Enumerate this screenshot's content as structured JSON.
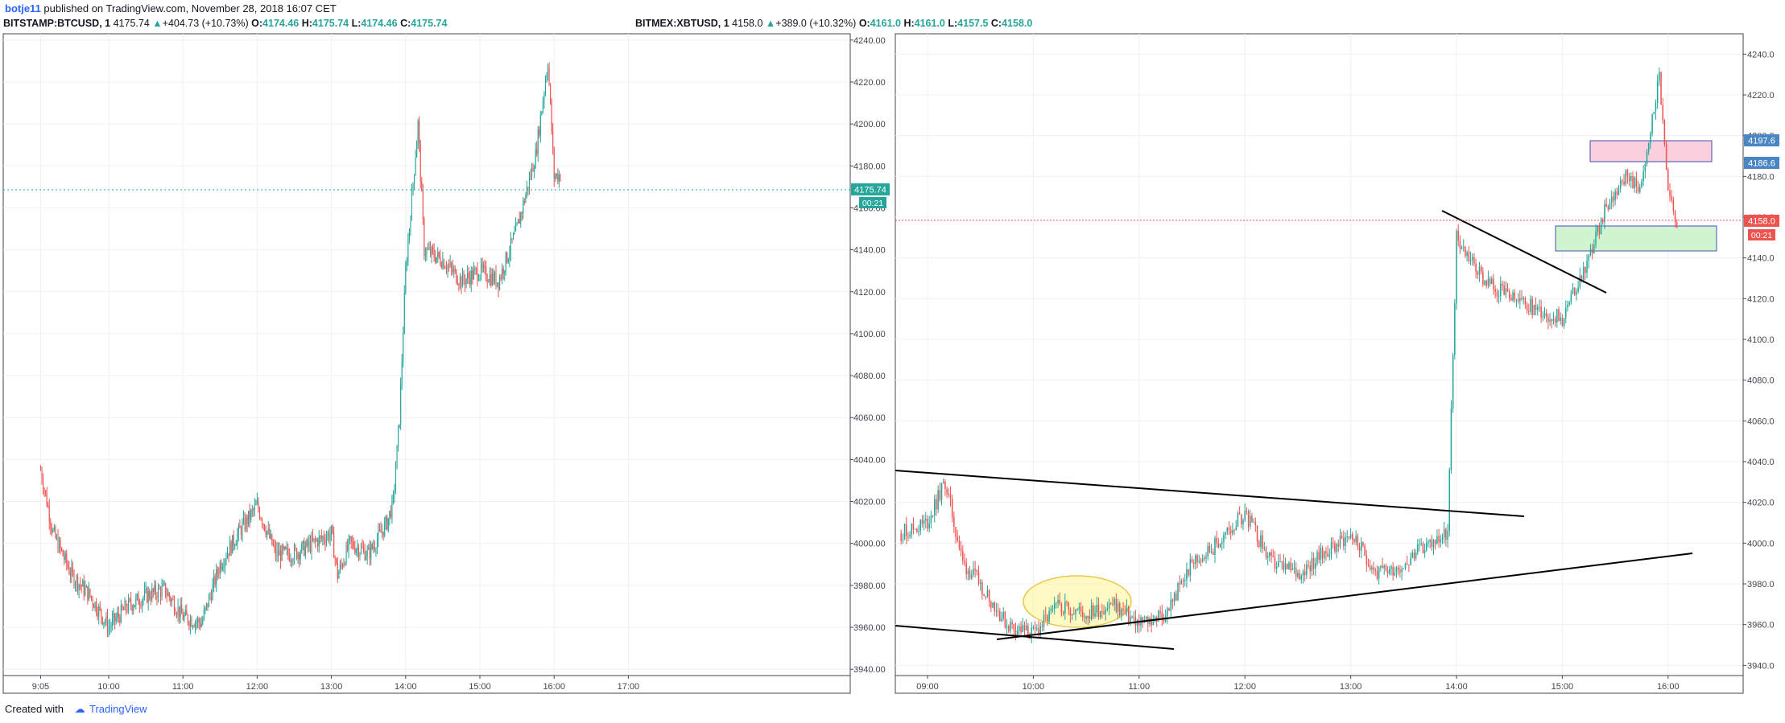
{
  "header": {
    "author": "botje11",
    "published_text": "published on TradingView.com, November 28, 2018 16:07 CET"
  },
  "footer": {
    "created_with": "Created with",
    "brand": "TradingView"
  },
  "charts": [
    {
      "symbol": "BITSTAMP:BTCUSD, 1",
      "last": "4175.74",
      "change": "+404.73 (+10.73%)",
      "o_label": "O:",
      "open": "4174.46",
      "h_label": "H:",
      "high": "4175.74",
      "l_label": "L:",
      "low": "4174.46",
      "c_label": "C:",
      "close": "4175.74",
      "price_tag": "4175.74",
      "countdown": "00:21",
      "x_labels": [
        "9:05",
        "10:00",
        "11:00",
        "12:00",
        "13:00",
        "14:00",
        "15:00",
        "16:00",
        "17:00"
      ],
      "y_labels": [
        "4240.00",
        "4220.00",
        "4200.00",
        "4180.00",
        "4160.00",
        "4140.00",
        "4120.00",
        "4100.00",
        "4080.00",
        "4060.00",
        "4040.00",
        "4020.00",
        "4000.00",
        "3980.00",
        "3960.00",
        "3940.00"
      ]
    },
    {
      "symbol": "BITMEX:XBTUSD, 1",
      "last": "4158.0",
      "change": "+389.0 (+10.32%)",
      "o_label": "O:",
      "open": "4161.0",
      "h_label": "H:",
      "high": "4161.0",
      "l_label": "L:",
      "low": "4157.5",
      "c_label": "C:",
      "close": "4158.0",
      "price_tag": "4158.0",
      "countdown": "00:21",
      "zone_high_tag": "4197.6",
      "zone_low_tag": "4186.6",
      "x_labels": [
        "09:00",
        "10:00",
        "11:00",
        "12:00",
        "13:00",
        "14:00",
        "15:00",
        "16:00"
      ],
      "y_labels": [
        "4240.0",
        "4220.0",
        "4200.0",
        "4180.0",
        "4160.0",
        "4140.0",
        "4120.0",
        "4100.0",
        "4080.0",
        "4060.0",
        "4040.0",
        "4020.0",
        "4000.0",
        "3980.0",
        "3960.0",
        "3940.0"
      ]
    }
  ],
  "chart_data": [
    {
      "type": "line",
      "title": "BITSTAMP:BTCUSD, 1",
      "x": [
        "09:05",
        "09:15",
        "09:30",
        "09:45",
        "10:00",
        "10:15",
        "10:30",
        "10:45",
        "11:00",
        "11:15",
        "11:30",
        "11:45",
        "12:00",
        "12:15",
        "12:30",
        "12:45",
        "13:00",
        "13:05",
        "13:15",
        "13:30",
        "13:45",
        "13:50",
        "13:55",
        "14:00",
        "14:10",
        "14:15",
        "14:30",
        "14:45",
        "15:00",
        "15:15",
        "15:30",
        "15:45",
        "15:55",
        "16:00",
        "16:05"
      ],
      "series": [
        {
          "values": [
            4035,
            4005,
            3985,
            3975,
            3960,
            3970,
            3975,
            3978,
            3965,
            3962,
            3990,
            4005,
            4018,
            3995,
            3995,
            4000,
            4005,
            3985,
            4000,
            3995,
            4010,
            4020,
            4060,
            4130,
            4200,
            4140,
            4135,
            4125,
            4130,
            4125,
            4150,
            4185,
            4230,
            4175,
            4175.74
          ]
        }
      ],
      "ylim": [
        3935,
        4250
      ]
    },
    {
      "type": "line",
      "title": "BITMEX:XBTUSD, 1",
      "x": [
        "08:45",
        "09:00",
        "09:10",
        "09:20",
        "09:30",
        "09:45",
        "10:00",
        "10:15",
        "10:30",
        "10:45",
        "11:00",
        "11:15",
        "11:30",
        "11:45",
        "12:00",
        "12:15",
        "12:30",
        "12:45",
        "13:00",
        "13:15",
        "13:30",
        "13:45",
        "13:55",
        "14:00",
        "14:15",
        "14:30",
        "14:45",
        "15:00",
        "15:15",
        "15:25",
        "15:35",
        "15:45",
        "15:55",
        "16:00",
        "16:05"
      ],
      "series": [
        {
          "values": [
            4005,
            4010,
            4030,
            3990,
            3980,
            3960,
            3955,
            3970,
            3965,
            3970,
            3960,
            3965,
            3990,
            4000,
            4015,
            3990,
            3985,
            3995,
            4005,
            3985,
            3990,
            4000,
            4005,
            4150,
            4130,
            4120,
            4115,
            4110,
            4140,
            4165,
            4180,
            4175,
            4230,
            4170,
            4158
          ]
        }
      ],
      "ylim": [
        3935,
        4250
      ]
    }
  ]
}
